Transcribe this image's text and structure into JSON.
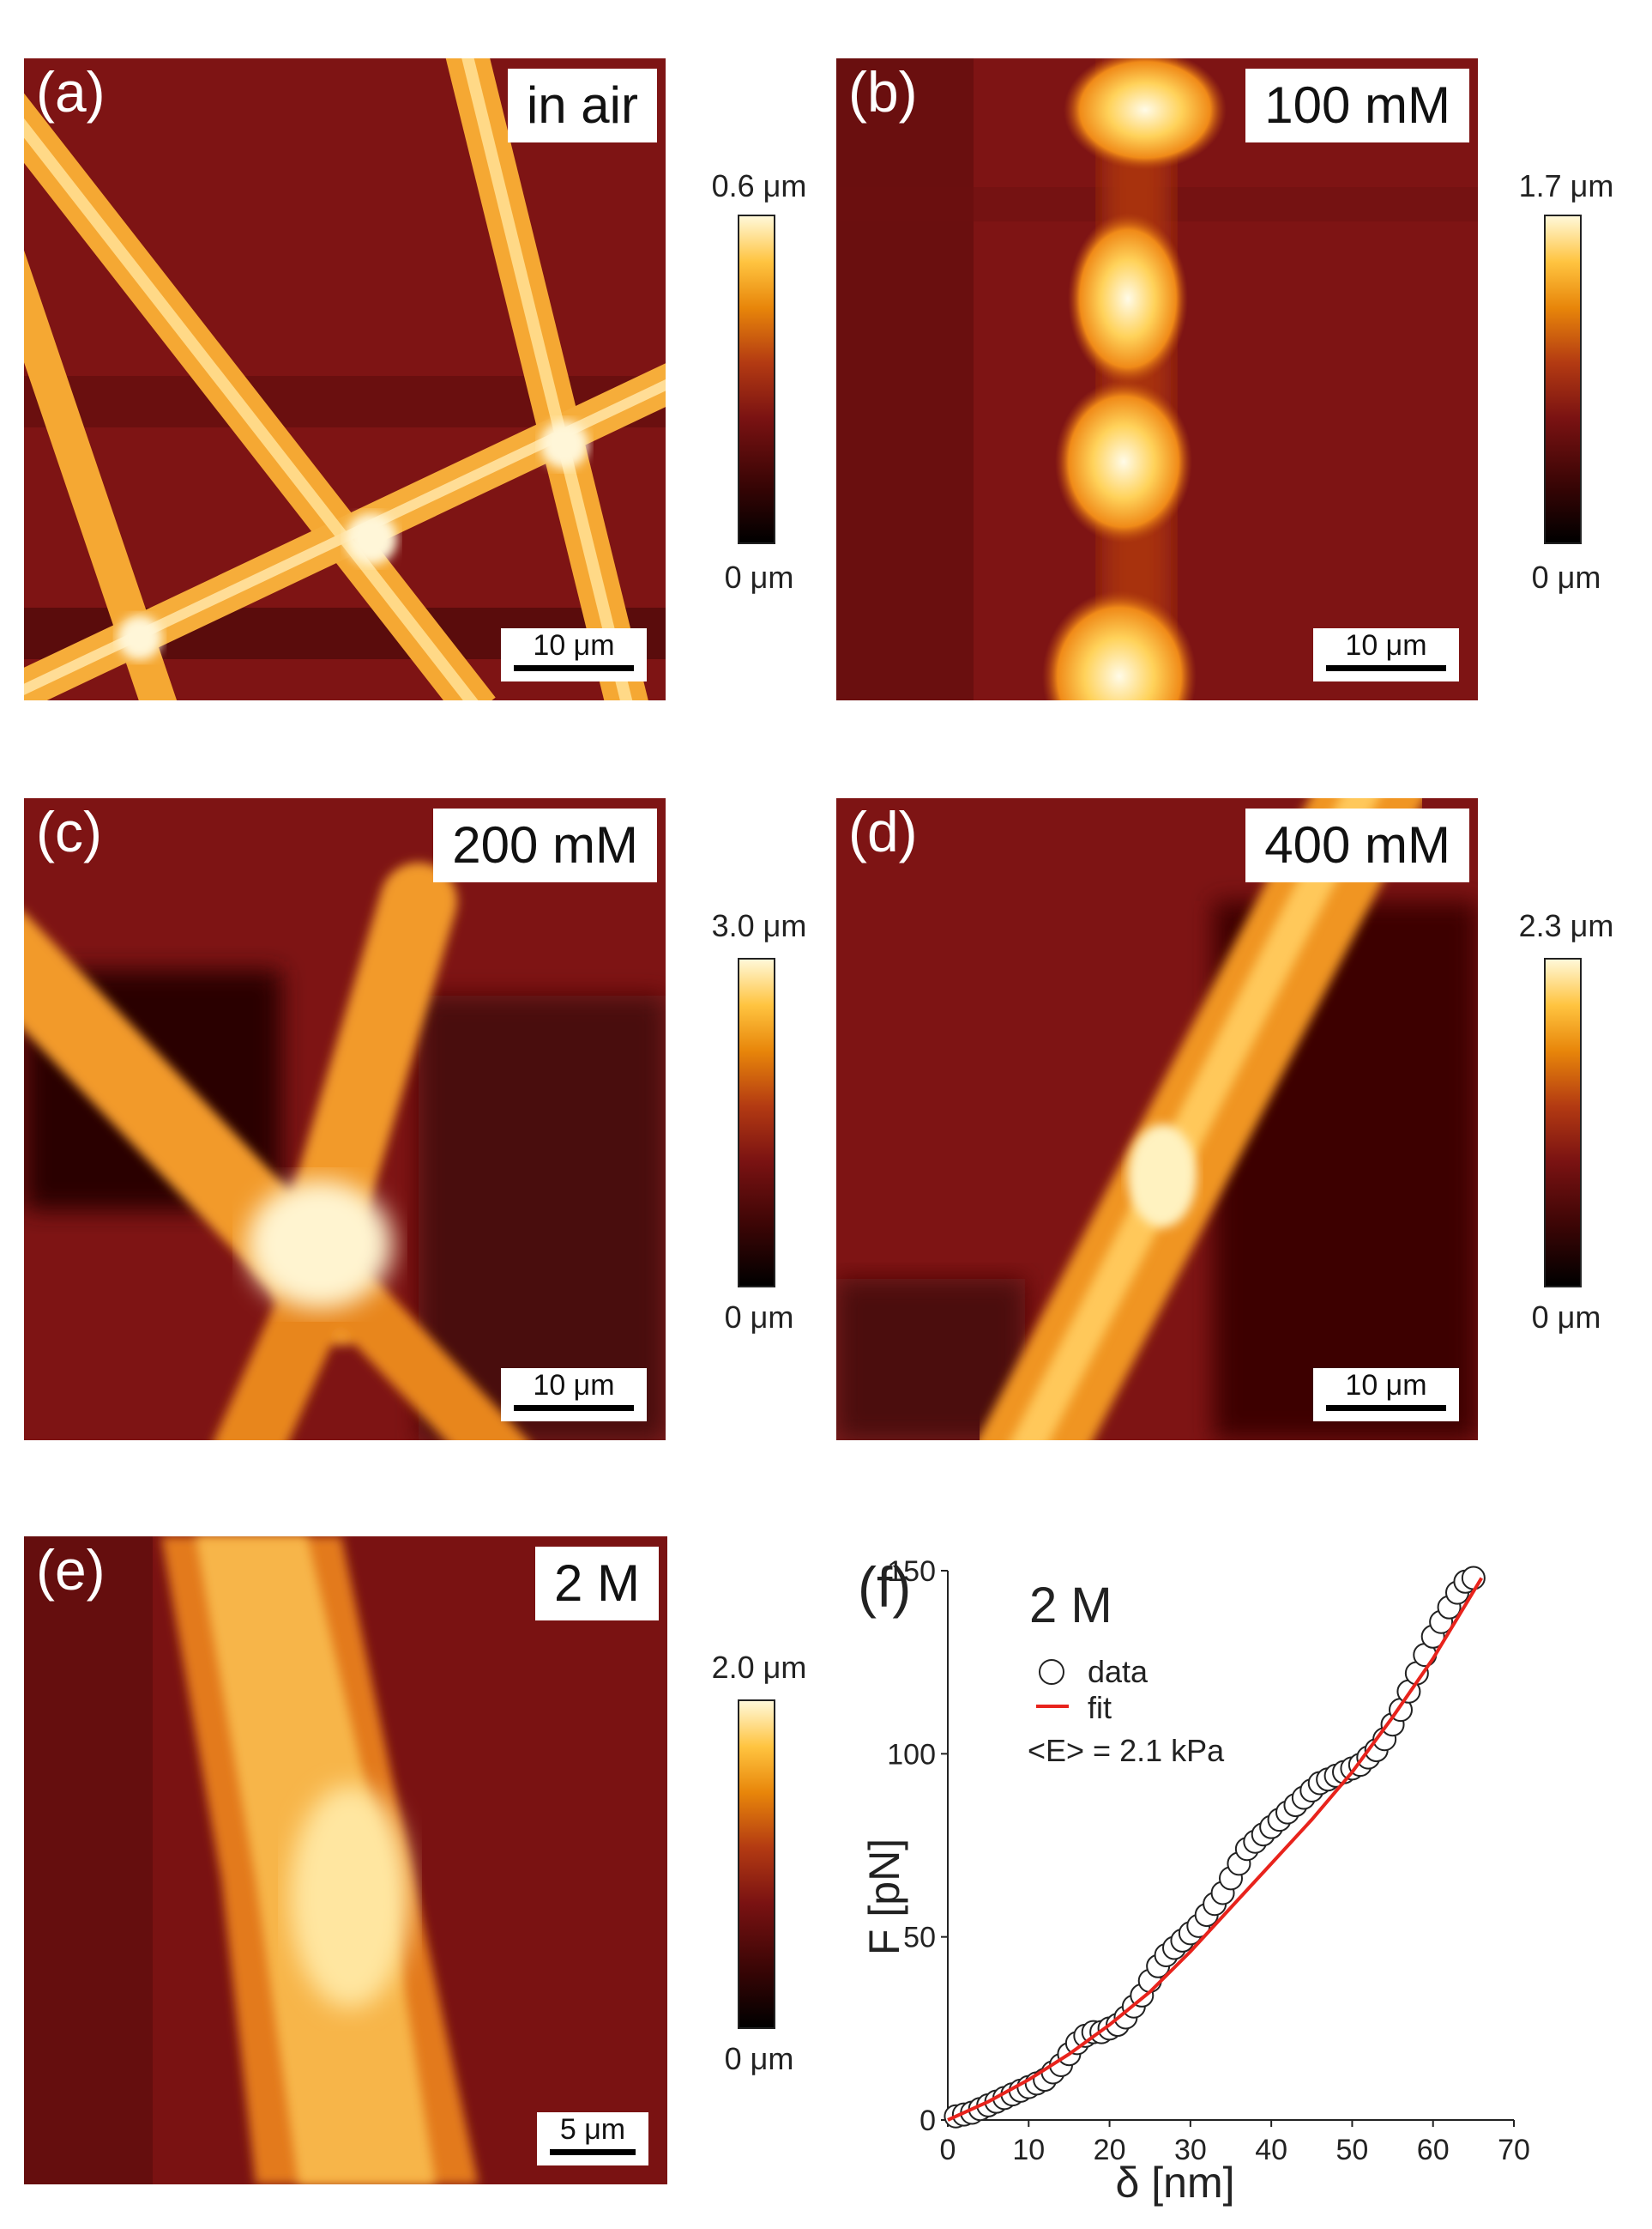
{
  "panels": [
    {
      "id": "a",
      "label": "(a)",
      "condition": "in air",
      "scalebar": "10 μm",
      "cbar_max": "0.6 μm",
      "cbar_min": "0 μm"
    },
    {
      "id": "b",
      "label": "(b)",
      "condition": "100 mM",
      "scalebar": "10 μm",
      "cbar_max": "1.7 μm",
      "cbar_min": "0 μm"
    },
    {
      "id": "c",
      "label": "(c)",
      "condition": "200 mM",
      "scalebar": "10 μm",
      "cbar_max": "3.0 μm",
      "cbar_min": "0 μm"
    },
    {
      "id": "d",
      "label": "(d)",
      "condition": "400 mM",
      "scalebar": "10 μm",
      "cbar_max": "2.3 μm",
      "cbar_min": "0 μm"
    },
    {
      "id": "e",
      "label": "(e)",
      "condition": "2 M",
      "scalebar": "5 μm",
      "cbar_max": "2.0 μm",
      "cbar_min": "0 μm"
    }
  ],
  "chart_data": {
    "type": "scatter",
    "panel_label": "(f)",
    "title": "2 M",
    "xlabel": "δ [nm]",
    "ylabel": "F [pN]",
    "xlim": [
      0,
      70
    ],
    "ylim": [
      0,
      150
    ],
    "xticks": [
      0,
      10,
      20,
      30,
      40,
      50,
      60,
      70
    ],
    "yticks": [
      0,
      50,
      100,
      150
    ],
    "legend": [
      "data",
      "fit"
    ],
    "annotation": "<E> = 2.1 kPa",
    "series": [
      {
        "name": "data",
        "marker": "open-circle",
        "x": [
          1,
          2,
          3,
          4,
          5,
          6,
          7,
          8,
          9,
          10,
          11,
          12,
          13,
          14,
          15,
          16,
          17,
          18,
          19,
          20,
          21,
          22,
          23,
          24,
          25,
          26,
          27,
          28,
          29,
          30,
          31,
          32,
          33,
          34,
          35,
          36,
          37,
          38,
          39,
          40,
          41,
          42,
          43,
          44,
          45,
          46,
          47,
          48,
          49,
          50,
          51,
          52,
          53,
          54,
          55,
          56,
          57,
          58,
          59,
          60,
          61,
          62,
          63,
          64,
          65
        ],
        "y": [
          1,
          1.5,
          2,
          3,
          4,
          5,
          6,
          7,
          8,
          9,
          10,
          11,
          13,
          15,
          18,
          21,
          23,
          24,
          24,
          25,
          26,
          28,
          31,
          34,
          38,
          42,
          45,
          47,
          49,
          51,
          53,
          56,
          59,
          62,
          66,
          70,
          74,
          76,
          78,
          80,
          82,
          84,
          86,
          88,
          90,
          92,
          93,
          94,
          95,
          96,
          97,
          99,
          101,
          104,
          108,
          112,
          117,
          122,
          127,
          132,
          136,
          140,
          144,
          147,
          148
        ]
      },
      {
        "name": "fit",
        "color": "#e8231c",
        "x": [
          0,
          5,
          10,
          15,
          20,
          25,
          30,
          35,
          40,
          45,
          50,
          55,
          60,
          66
        ],
        "y": [
          0,
          5,
          11,
          18,
          26,
          35,
          46,
          58,
          70,
          82,
          95,
          110,
          126,
          148
        ]
      }
    ]
  },
  "colors": {
    "fit": "#e8231c",
    "afm_background": "#7a1414",
    "afm_bright": "#fff2b8"
  }
}
